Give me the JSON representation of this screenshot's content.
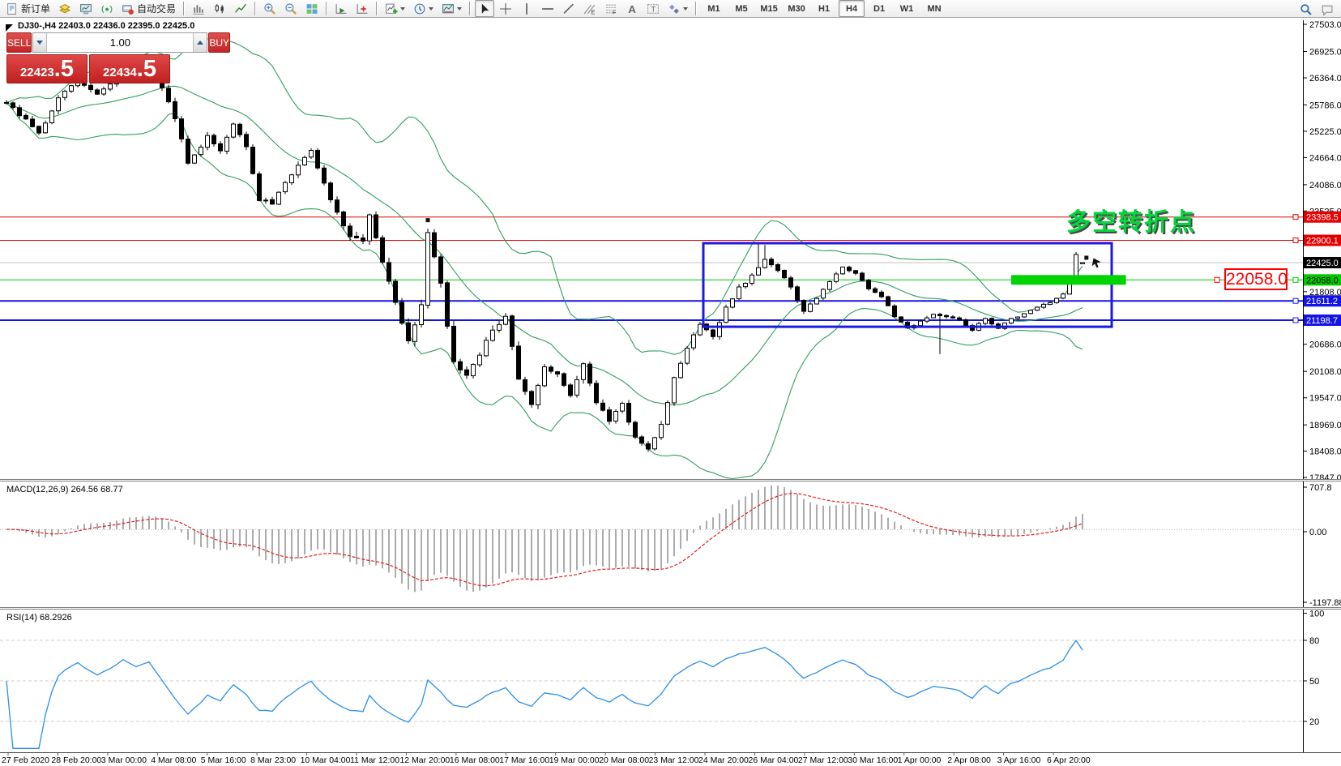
{
  "toolbar": {
    "buttons_left": [
      {
        "id": "new-order",
        "icon": "new-order",
        "label": "新订单"
      },
      {
        "id": "layers",
        "icon": "layers"
      },
      {
        "id": "terminal",
        "icon": "terminal"
      },
      {
        "id": "signal",
        "icon": "signal"
      },
      {
        "id": "autotrade",
        "icon": "autotrade",
        "label": "自动交易"
      },
      {
        "sep": true
      },
      {
        "id": "bar-chart",
        "icon": "bars-chart"
      },
      {
        "id": "candle-chart",
        "icon": "candles-chart"
      },
      {
        "id": "line-chart",
        "icon": "line-chart"
      },
      {
        "sep": true
      },
      {
        "id": "zoom-in",
        "icon": "zoom-in"
      },
      {
        "id": "zoom-out",
        "icon": "zoom-out"
      },
      {
        "id": "tile-windows",
        "icon": "tiles"
      },
      {
        "sep": true
      },
      {
        "id": "auto-scroll",
        "icon": "auto-scroll"
      },
      {
        "id": "chart-shift",
        "icon": "chart-shift"
      },
      {
        "sep": true
      },
      {
        "id": "new-chart",
        "icon": "new-chart",
        "dropdown": true
      },
      {
        "id": "periods",
        "icon": "clock",
        "dropdown": true
      },
      {
        "id": "templates",
        "icon": "template",
        "dropdown": true
      },
      {
        "sep": true
      },
      {
        "id": "cursor",
        "icon": "cursor",
        "active": true
      },
      {
        "id": "crosshair",
        "icon": "crosshair"
      },
      {
        "id": "vertical-line",
        "icon": "vline"
      },
      {
        "id": "horizontal-line",
        "icon": "hline"
      },
      {
        "id": "trendline",
        "icon": "trendline"
      },
      {
        "id": "equidistant-channel",
        "icon": "channel"
      },
      {
        "id": "fibonacci",
        "icon": "fibo"
      },
      {
        "id": "text",
        "icon": "text-a"
      },
      {
        "id": "text-label",
        "icon": "label-t"
      },
      {
        "id": "arrows",
        "icon": "shapes",
        "dropdown": true
      },
      {
        "sep": true
      }
    ],
    "timeframes": [
      "M1",
      "M5",
      "M15",
      "M30",
      "H1",
      "H4",
      "D1",
      "W1",
      "MN"
    ],
    "active_timeframe": "H4",
    "right_buttons": [
      {
        "id": "search",
        "icon": "search"
      },
      {
        "id": "chat",
        "icon": "chat"
      }
    ]
  },
  "chart": {
    "title": "DJ30-,H4 22403.0 22436.0 22395.0 22425.0",
    "trade_panel": {
      "sell_label": "SELL",
      "buy_label": "BUY",
      "volume": "1.00",
      "sell_price_main": "22423",
      "sell_price_frac": ".5",
      "buy_price_main": "22434",
      "buy_price_frac": ".5"
    },
    "annotation": {
      "text": "多空转折点",
      "color": "#00d83a"
    },
    "callout": {
      "text": "22058.0",
      "color": "#ff0000"
    }
  },
  "indicators": {
    "macd": {
      "label": "MACD(12,26,9) 264.56 68.77",
      "axis_labels": [
        "707.8",
        "0.00",
        "-1197.88"
      ]
    },
    "rsi": {
      "label": "RSI(14) 68.2926",
      "axis_labels": [
        "100",
        "80",
        "50",
        "20"
      ],
      "levels": [
        80,
        50,
        20
      ]
    }
  },
  "chart_data": {
    "type": "candlestick",
    "symbol": "DJ30-",
    "timeframe": "H4",
    "current_bar": {
      "open": 22403.0,
      "high": 22436.0,
      "low": 22395.0,
      "close": 22425.0
    },
    "bid": "22423.5",
    "ask": "22434.5",
    "y_axis_ticks": [
      27503.0,
      26925.0,
      26364.0,
      25786.0,
      25225.0,
      24664.0,
      24086.0,
      23525.0,
      21808.0,
      20686.0,
      20108.0,
      19547.0,
      18969.0,
      18408.0,
      17847.0
    ],
    "x_axis_labels": [
      "27 Feb 2020",
      "28 Feb 20:00",
      "3 Mar 00:00",
      "4 Mar 08:00",
      "5 Mar 16:00",
      "8 Mar 23:00",
      "10 Mar 04:00",
      "11 Mar 12:00",
      "12 Mar 20:00",
      "16 Mar 08:00",
      "17 Mar 16:00",
      "19 Mar 00:00",
      "20 Mar 08:00",
      "23 Mar 12:00",
      "24 Mar 20:00",
      "26 Mar 04:00",
      "27 Mar 12:00",
      "30 Mar 16:00",
      "1 Apr 00:00",
      "2 Apr 08:00",
      "3 Apr 16:00",
      "6 Apr 20:00"
    ],
    "levels": [
      {
        "price": 23398.5,
        "color": "#e60000",
        "width": 1,
        "text": "#ffffff"
      },
      {
        "price": 22900.1,
        "color": "#e60000",
        "width": 1,
        "text": "#ffffff"
      },
      {
        "price": 22058.0,
        "color": "#00c800",
        "width": 1,
        "text": "#000000"
      },
      {
        "price": 21611.2,
        "color": "#1414e6",
        "width": 2,
        "text": "#ffffff"
      },
      {
        "price": 21198.7,
        "color": "#1414e6",
        "width": 2,
        "text": "#ffffff"
      }
    ],
    "current_price": {
      "value": 22425.0,
      "line_color": "#c0c0c0",
      "label_bg": "#000000",
      "label_text": "#ffffff"
    },
    "bollinger": {
      "period": 20,
      "deviation": 2,
      "color": "#2f9e60"
    },
    "price_anchors": [
      [
        0,
        25850,
        130
      ],
      [
        3,
        25450,
        140
      ],
      [
        5,
        25160,
        140
      ],
      [
        8,
        25950,
        150
      ],
      [
        11,
        26280,
        130
      ],
      [
        14,
        26000,
        130
      ],
      [
        16,
        26250,
        120
      ],
      [
        18,
        26560,
        110
      ],
      [
        20,
        26420,
        120
      ],
      [
        22,
        26580,
        120
      ],
      [
        24,
        26150,
        150
      ],
      [
        26,
        25500,
        160
      ],
      [
        28,
        24550,
        170
      ],
      [
        30,
        24900,
        160
      ],
      [
        31,
        25170,
        150
      ],
      [
        33,
        24780,
        150
      ],
      [
        35,
        25380,
        150
      ],
      [
        37,
        24880,
        160
      ],
      [
        39,
        23780,
        180
      ],
      [
        41,
        23700,
        170
      ],
      [
        43,
        24100,
        170
      ],
      [
        45,
        24520,
        170
      ],
      [
        47,
        24780,
        160
      ],
      [
        49,
        24080,
        180
      ],
      [
        51,
        23500,
        180
      ],
      [
        53,
        23000,
        190
      ],
      [
        55,
        22840,
        190
      ],
      [
        56,
        23420,
        180
      ],
      [
        58,
        22480,
        200
      ],
      [
        60,
        21580,
        210
      ],
      [
        62,
        20780,
        220
      ],
      [
        64,
        21500,
        230
      ],
      [
        65,
        23060,
        210
      ],
      [
        67,
        21950,
        220
      ],
      [
        69,
        20260,
        230
      ],
      [
        71,
        20060,
        210
      ],
      [
        73,
        20500,
        200
      ],
      [
        75,
        20950,
        190
      ],
      [
        77,
        21280,
        190
      ],
      [
        79,
        19950,
        210
      ],
      [
        81,
        19380,
        200
      ],
      [
        83,
        20220,
        190
      ],
      [
        85,
        20020,
        180
      ],
      [
        87,
        19560,
        180
      ],
      [
        89,
        20260,
        170
      ],
      [
        91,
        19480,
        170
      ],
      [
        93,
        19020,
        160
      ],
      [
        95,
        19420,
        150
      ],
      [
        97,
        18680,
        150
      ],
      [
        99,
        18460,
        130
      ],
      [
        101,
        18980,
        150
      ],
      [
        103,
        19950,
        160
      ],
      [
        105,
        20620,
        150
      ],
      [
        107,
        21120,
        140
      ],
      [
        109,
        20880,
        140
      ],
      [
        111,
        21480,
        130
      ],
      [
        113,
        21880,
        130
      ],
      [
        115,
        22140,
        120
      ],
      [
        117,
        22480,
        110
      ],
      [
        119,
        22280,
        110
      ],
      [
        121,
        21880,
        120
      ],
      [
        123,
        21380,
        110
      ],
      [
        125,
        21680,
        100
      ],
      [
        127,
        22040,
        100
      ],
      [
        129,
        22320,
        95
      ],
      [
        131,
        22180,
        90
      ],
      [
        133,
        21880,
        90
      ],
      [
        135,
        21720,
        90
      ],
      [
        137,
        21280,
        95
      ],
      [
        139,
        21030,
        90
      ],
      [
        141,
        21160,
        85
      ],
      [
        143,
        21340,
        80
      ],
      [
        145,
        21280,
        80
      ],
      [
        147,
        21220,
        75
      ],
      [
        149,
        20980,
        80
      ],
      [
        151,
        21240,
        75
      ],
      [
        153,
        21030,
        70
      ],
      [
        155,
        21240,
        70
      ],
      [
        157,
        21330,
        70
      ],
      [
        159,
        21480,
        70
      ],
      [
        161,
        21580,
        65
      ],
      [
        163,
        21760,
        60
      ],
      [
        164,
        22100,
        50
      ],
      [
        165,
        22600,
        40
      ],
      [
        166,
        22425,
        0
      ]
    ],
    "wick_overrides": [
      {
        "i": 116,
        "high": 22860
      },
      {
        "i": 117,
        "high": 22800
      },
      {
        "i": 144,
        "low": 20480
      }
    ],
    "objects": {
      "rectangle": {
        "from_bar": 107.5,
        "to_bar": 170.5,
        "top_price": 22840,
        "bottom_price": 21060,
        "color": "#1a1ae0"
      },
      "thick_bar": {
        "price": 22058.0,
        "from_bar": 155,
        "to_bar": 172.7,
        "color": "#00d400",
        "thickness": 12
      },
      "markers": [
        {
          "bar": 65,
          "price": 23330,
          "type": "square"
        },
        {
          "bar": 166.6,
          "price": 22530,
          "type": "square"
        },
        {
          "bar": 167.7,
          "price": 22470,
          "type": "arrow"
        }
      ]
    }
  }
}
